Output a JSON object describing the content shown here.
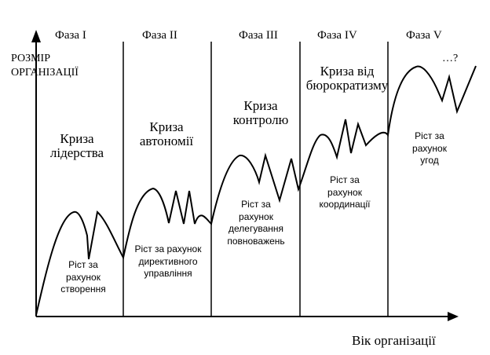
{
  "phases": [
    "Фаза I",
    "Фаза II",
    "Фаза III",
    "Фаза IV",
    "Фаза V"
  ],
  "crises": [
    [
      "Криза",
      "лідерства"
    ],
    [
      "Криза",
      "автономії"
    ],
    [
      "Криза",
      "контролю"
    ],
    [
      "Криза від",
      "бюрократизму"
    ],
    [
      "…?"
    ]
  ],
  "growth": [
    [
      "Ріст за",
      "рахунок",
      "створення"
    ],
    [
      "Ріст за рахунок",
      "директивного",
      "управління"
    ],
    [
      "Ріст за",
      "рахунок",
      "делегування",
      "повноважень"
    ],
    [
      "Ріст за",
      "рахунок",
      "координації"
    ],
    [
      "Ріст за",
      "рахунок",
      "угод"
    ]
  ],
  "axes": {
    "y_label": "РОЗМІР ОРГАНІЗАЦІЇ",
    "x_label": "Вік організації"
  }
}
